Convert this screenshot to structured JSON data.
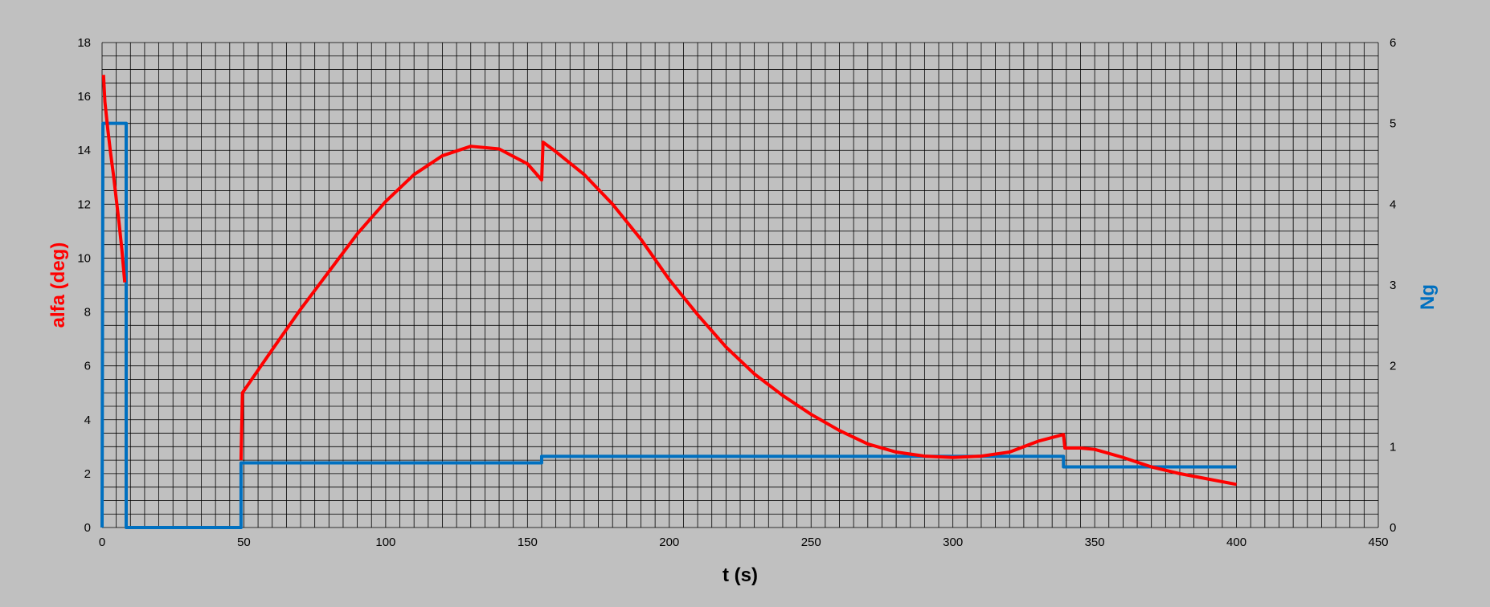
{
  "chart_data": {
    "type": "line",
    "xlabel": "t (s)",
    "ylabel_left": "alfa (deg)",
    "ylabel_right": "Ng",
    "xlim": [
      0,
      450
    ],
    "xticks": [
      0,
      50,
      100,
      150,
      200,
      250,
      300,
      350,
      400,
      450
    ],
    "ylim_left": [
      0,
      18
    ],
    "yticks_left": [
      0,
      2,
      4,
      6,
      8,
      10,
      12,
      14,
      16,
      18
    ],
    "ylim_right": [
      0,
      6
    ],
    "yticks_right": [
      0,
      1,
      2,
      3,
      4,
      5,
      6
    ],
    "grid": true,
    "legend": "none",
    "colors": {
      "alfa": "#ff0000",
      "ng": "#0070c0",
      "background": "#c0c0c0",
      "grid": "#000000"
    },
    "series": [
      {
        "axis": "left",
        "color": "#ff0000",
        "segments": [
          [
            [
              0.5,
              16.8
            ],
            [
              1,
              15.8
            ],
            [
              2,
              14.8
            ],
            [
              3,
              13.9
            ],
            [
              4,
              13.1
            ],
            [
              5,
              12.2
            ],
            [
              6,
              11.3
            ],
            [
              7,
              10.3
            ],
            [
              8,
              9.1
            ]
          ],
          [
            [
              49,
              2.5
            ],
            [
              49.5,
              5.0
            ],
            [
              60,
              6.6
            ],
            [
              70,
              8.1
            ],
            [
              80,
              9.5
            ],
            [
              90,
              10.9
            ],
            [
              100,
              12.1
            ],
            [
              110,
              13.1
            ],
            [
              120,
              13.8
            ],
            [
              130,
              14.15
            ],
            [
              140,
              14.05
            ],
            [
              150,
              13.5
            ],
            [
              155,
              12.9
            ],
            [
              155.5,
              14.3
            ],
            [
              160,
              13.95
            ],
            [
              170,
              13.1
            ],
            [
              180,
              12.0
            ],
            [
              190,
              10.7
            ],
            [
              200,
              9.2
            ],
            [
              210,
              7.9
            ],
            [
              220,
              6.7
            ],
            [
              230,
              5.7
            ],
            [
              240,
              4.9
            ],
            [
              250,
              4.2
            ],
            [
              260,
              3.6
            ],
            [
              270,
              3.1
            ],
            [
              280,
              2.8
            ],
            [
              290,
              2.65
            ],
            [
              300,
              2.6
            ],
            [
              310,
              2.65
            ],
            [
              320,
              2.8
            ],
            [
              330,
              3.2
            ],
            [
              339,
              3.45
            ],
            [
              339.5,
              2.95
            ],
            [
              345,
              2.95
            ],
            [
              350,
              2.9
            ],
            [
              360,
              2.6
            ],
            [
              370,
              2.25
            ],
            [
              380,
              2.0
            ],
            [
              390,
              1.8
            ],
            [
              400,
              1.6
            ]
          ]
        ]
      },
      {
        "axis": "right",
        "color": "#0070c0",
        "segments": [
          [
            [
              0,
              0
            ],
            [
              0.3,
              5.0
            ],
            [
              8.5,
              5.0
            ],
            [
              8.5,
              0
            ],
            [
              49,
              0
            ],
            [
              49,
              0.8
            ],
            [
              155,
              0.8
            ],
            [
              155,
              0.88
            ],
            [
              339,
              0.88
            ],
            [
              339,
              0.75
            ],
            [
              400,
              0.75
            ]
          ]
        ]
      }
    ]
  }
}
